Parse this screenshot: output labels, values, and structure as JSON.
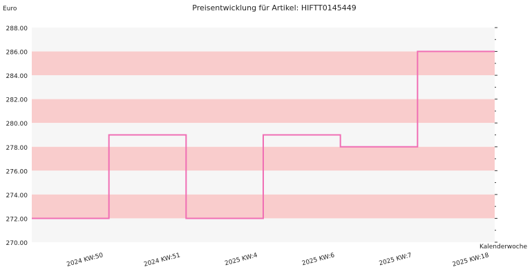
{
  "chart_data": {
    "type": "line",
    "title": "Preisentwicklung für Artikel: HIFTT0145449",
    "ylabel": "Euro",
    "xlabel": "Kalenderwoche",
    "ylim": [
      270,
      288
    ],
    "yticks": [
      "270.00",
      "272.00",
      "274.00",
      "276.00",
      "278.00",
      "280.00",
      "282.00",
      "284.00",
      "286.00",
      "288.00"
    ],
    "categories": [
      "2024 KW:50",
      "2024 KW:51",
      "2025 KW:4",
      "2025 KW:6",
      "2025 KW:7",
      "2025 KW:18"
    ],
    "series": [
      {
        "values": [
          272,
          279,
          272,
          279,
          278,
          286
        ]
      }
    ],
    "line_style": "step",
    "grid": true,
    "colors": {
      "line": "#f06eb4",
      "band": "#f9cccc",
      "band_alt": "#f6f6f6"
    }
  }
}
